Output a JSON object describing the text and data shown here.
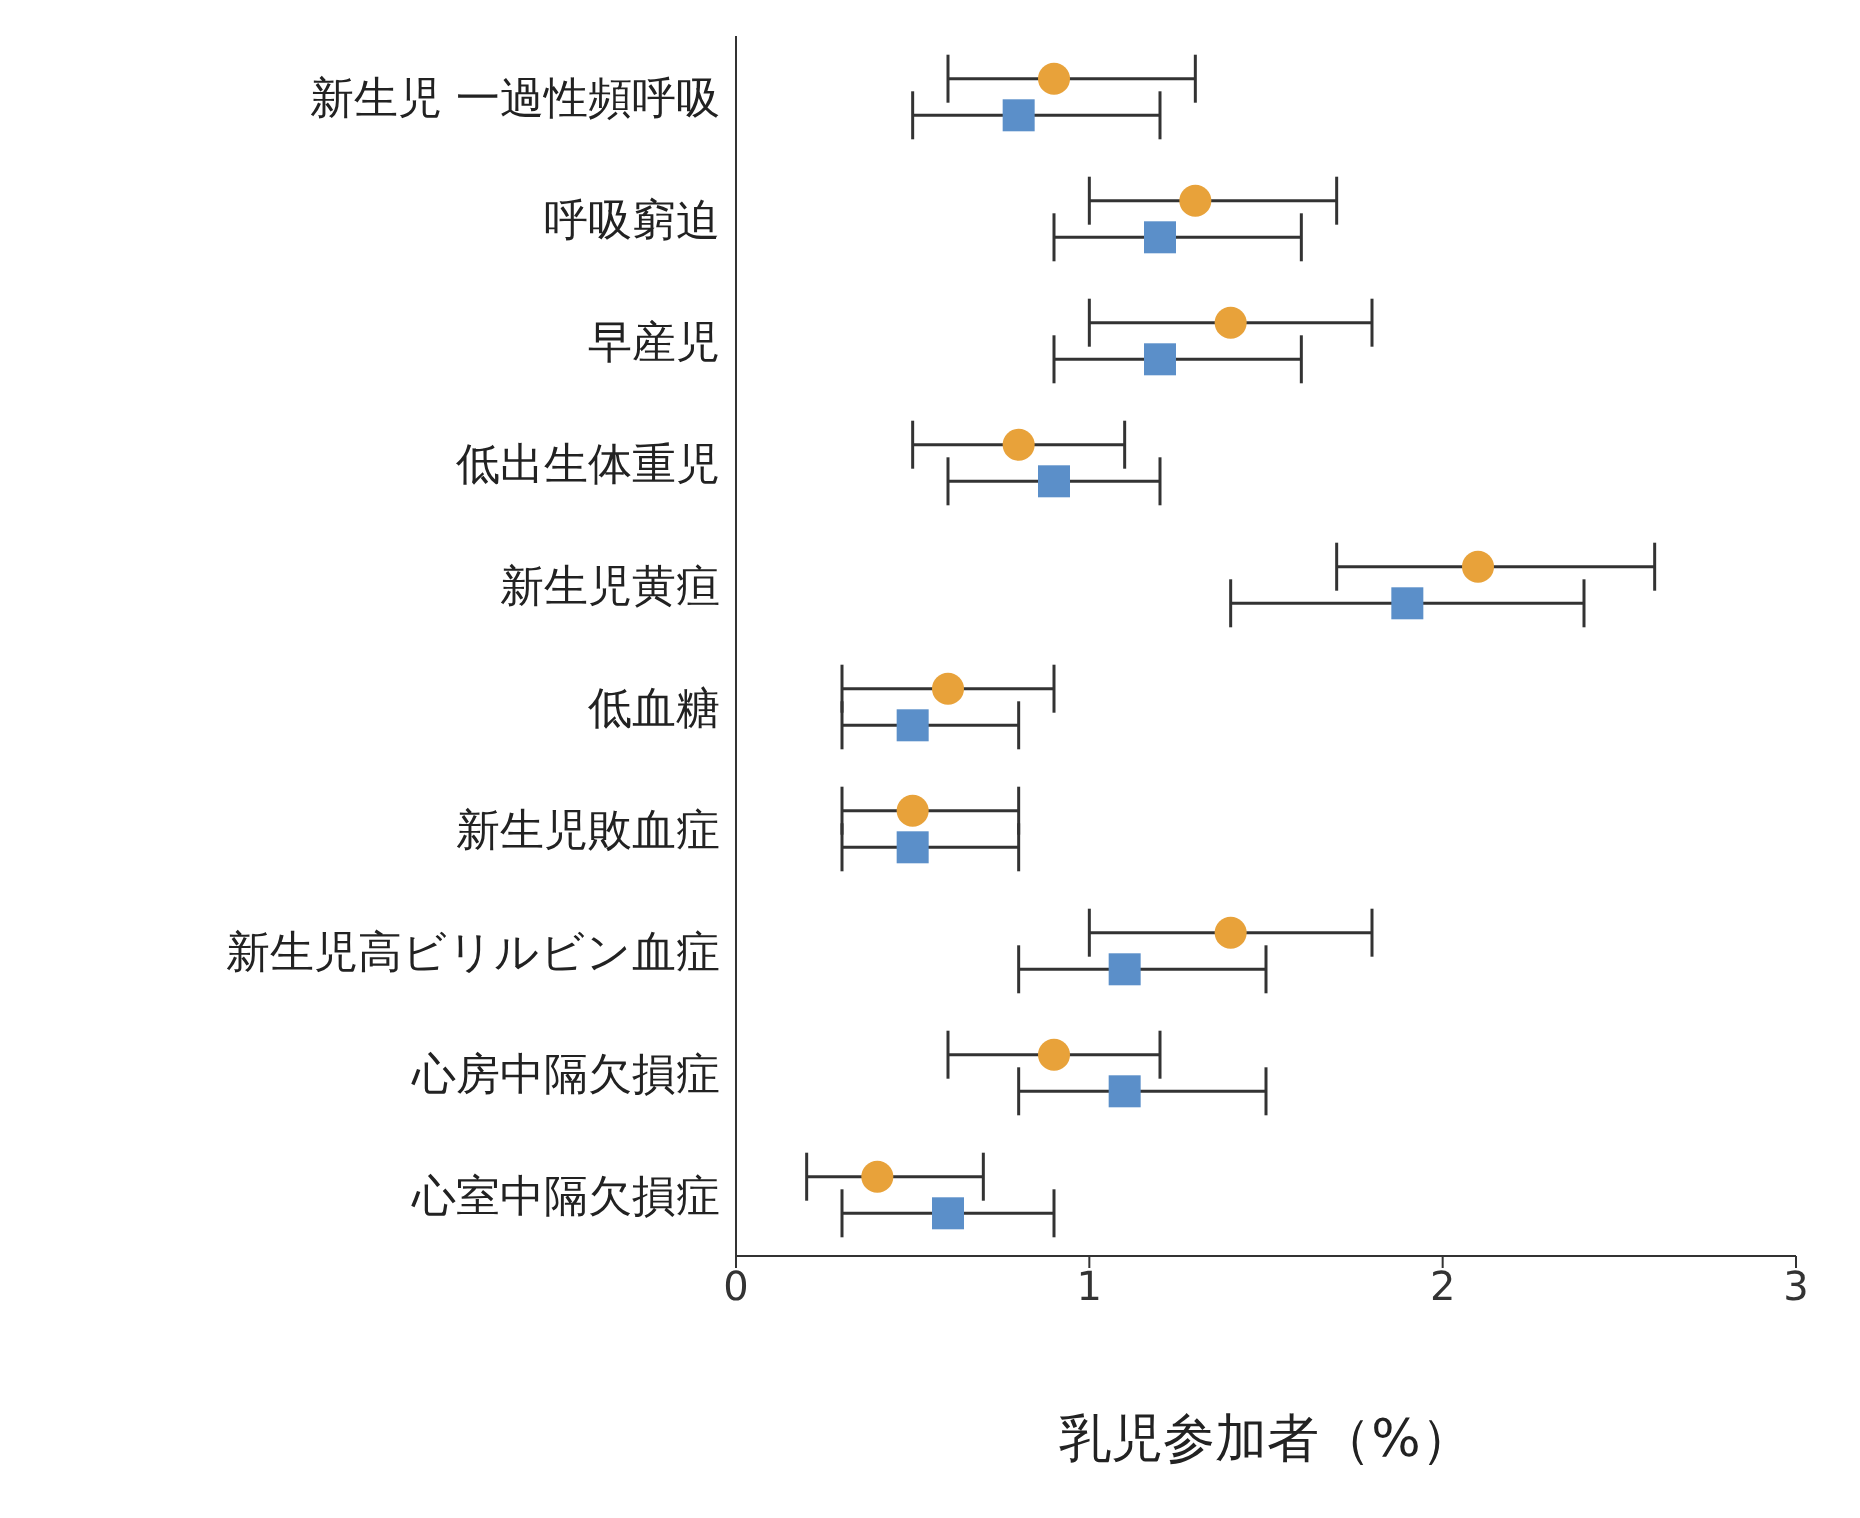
{
  "chart_data": {
    "type": "scatter",
    "orientation": "horizontal",
    "xlabel": "乳児参加者（%）",
    "categories": [
      "新生児 一過性頻呼吸",
      "呼吸窮迫",
      "早産児",
      "低出生体重児",
      "新生児黄疸",
      "低血糖",
      "新生児敗血症",
      "新生児高ビリルビン血症",
      "心房中隔欠損症",
      "心室中隔欠損症"
    ],
    "series": [
      {
        "color": "#e8a23a",
        "marker": "circle",
        "values": [
          0.9,
          1.3,
          1.4,
          0.8,
          2.1,
          0.6,
          0.5,
          1.4,
          0.9,
          0.4
        ],
        "errors": [
          [
            0.6,
            1.3
          ],
          [
            1.0,
            1.7
          ],
          [
            1.0,
            1.8
          ],
          [
            0.5,
            1.1
          ],
          [
            1.7,
            2.6
          ],
          [
            0.3,
            0.9
          ],
          [
            0.3,
            0.8
          ],
          [
            1.0,
            1.8
          ],
          [
            0.6,
            1.2
          ],
          [
            0.2,
            0.7
          ]
        ]
      },
      {
        "color": "#5b8fc9",
        "marker": "square",
        "values": [
          0.8,
          1.2,
          1.2,
          0.9,
          1.9,
          0.5,
          0.5,
          1.1,
          1.1,
          0.6
        ],
        "errors": [
          [
            0.5,
            1.2
          ],
          [
            0.9,
            1.6
          ],
          [
            0.9,
            1.6
          ],
          [
            0.6,
            1.2
          ],
          [
            1.4,
            2.4
          ],
          [
            0.3,
            0.8
          ],
          [
            0.3,
            0.8
          ],
          [
            0.8,
            1.5
          ],
          [
            0.8,
            1.5
          ],
          [
            0.3,
            0.9
          ]
        ]
      }
    ],
    "xlim": [
      0,
      3
    ],
    "xticks": [
      0,
      1,
      2,
      3
    ],
    "grid": false,
    "legend": false
  }
}
